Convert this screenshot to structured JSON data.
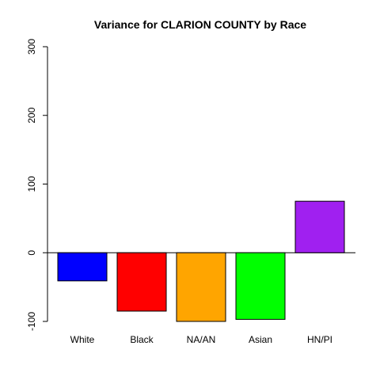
{
  "chart_data": {
    "type": "bar",
    "title": "Variance for CLARION COUNTY by Race",
    "xlabel": "",
    "ylabel": "",
    "categories": [
      "White",
      "Black",
      "NA/AN",
      "Asian",
      "HN/PI"
    ],
    "values": [
      -41,
      -85,
      -100,
      -97,
      75
    ],
    "colors": [
      "#0000ff",
      "#ff0000",
      "#ffa500",
      "#00ff00",
      "#a020f0"
    ],
    "ylim": [
      -100,
      300
    ],
    "yticks": [
      -100,
      0,
      100,
      200,
      300
    ],
    "baseline": 0,
    "grid": false,
    "legend": "none"
  }
}
